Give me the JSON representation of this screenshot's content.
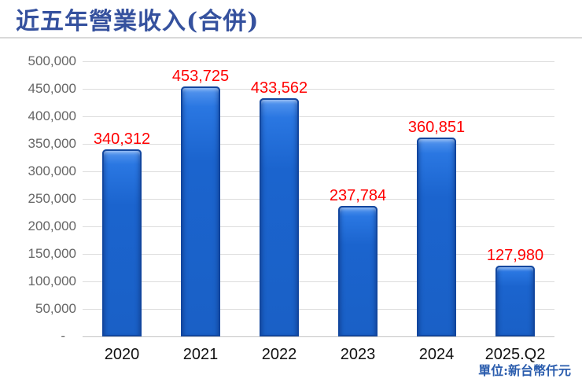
{
  "title": "近五年營業收入(合併)",
  "unit_label": "單位:新台幣仟元",
  "colors": {
    "title": "#35519E",
    "bar_fill": "#1B64CE",
    "bar_edge": "#12479F",
    "value_label": "#FF0000",
    "y_axis_label": "#666666",
    "x_axis_label": "#111111",
    "gridline": "#DCDCDC",
    "unit_label": "#2A5CAD"
  },
  "chart_data": {
    "type": "bar",
    "title": "近五年營業收入(合併)",
    "categories": [
      "2020",
      "2021",
      "2022",
      "2023",
      "2024",
      "2025.Q2"
    ],
    "values": [
      340312,
      453725,
      433562,
      237784,
      360851,
      127980
    ],
    "value_labels": [
      "340,312",
      "453,725",
      "433,562",
      "237,784",
      "360,851",
      "127,980"
    ],
    "ylim": [
      0,
      500000
    ],
    "ytick_step": 50000,
    "ytick_labels_top_to_bottom": [
      "500,000",
      "450,000",
      "400,000",
      "350,000",
      "300,000",
      "250,000",
      "200,000",
      "150,000",
      "100,000",
      "50,000",
      "-"
    ],
    "grid": true,
    "legend": false,
    "unit_note": "單位:新台幣仟元"
  }
}
